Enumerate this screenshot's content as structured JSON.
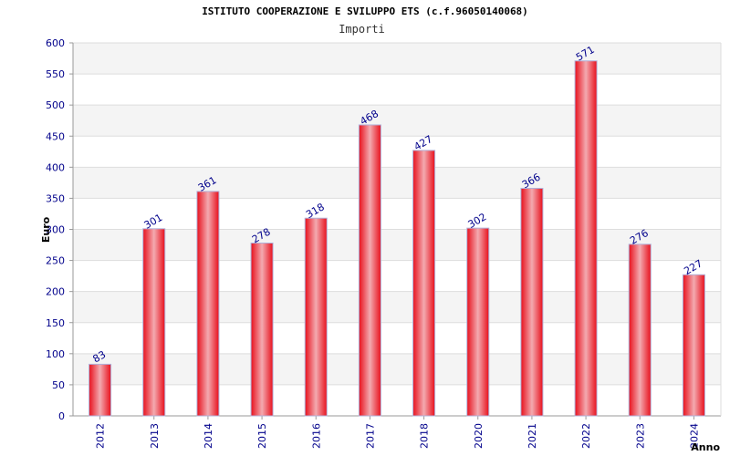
{
  "title": "ISTITUTO COOPERAZIONE E SVILUPPO ETS (c.f.96050140068)",
  "subtitle": "Importi",
  "chart_data": {
    "type": "bar",
    "title": "ISTITUTO COOPERAZIONE E SVILUPPO ETS (c.f.96050140068)",
    "subtitle": "Importi",
    "xlabel": "Anno",
    "ylabel": "Euro",
    "categories": [
      "2012",
      "2013",
      "2014",
      "2015",
      "2016",
      "2017",
      "2018",
      "2020",
      "2021",
      "2022",
      "2023",
      "2024"
    ],
    "values": [
      83,
      301,
      361,
      278,
      318,
      468,
      427,
      302,
      366,
      571,
      276,
      227
    ],
    "ylim": [
      0,
      600
    ],
    "yticks": [
      0,
      50,
      100,
      150,
      200,
      250,
      300,
      350,
      400,
      450,
      500,
      550,
      600
    ],
    "grid": true,
    "legend": "none",
    "colors": {
      "bar": "#e8101c",
      "bar_highlight": "#f3aab0",
      "tick_label": "#00008b",
      "grid_band": "#f4f4f4",
      "grid_line": "#dddddd"
    }
  }
}
